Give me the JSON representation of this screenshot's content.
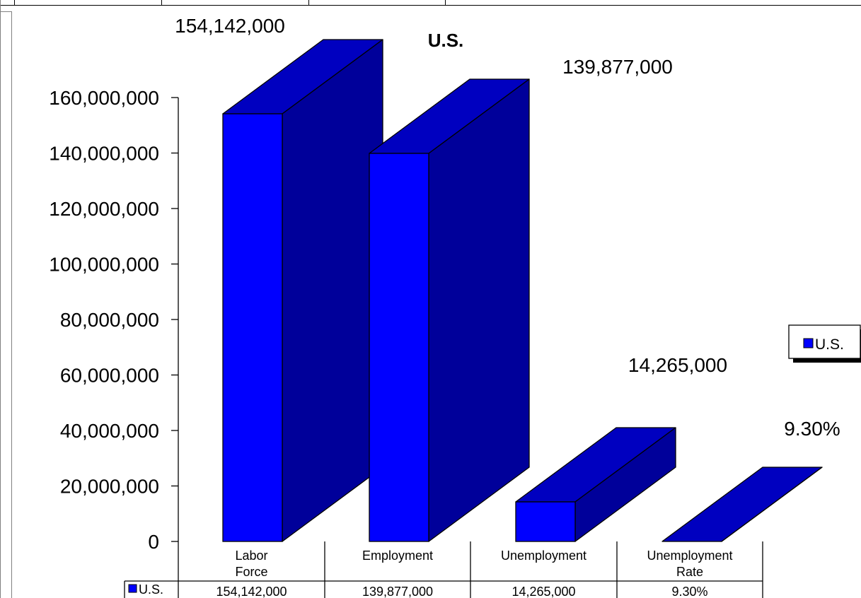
{
  "chart_data": {
    "type": "bar",
    "three_d": true,
    "title": "U.S.",
    "categories": [
      "Labor Force",
      "Employment",
      "Unemployment",
      "Unemployment Rate"
    ],
    "series": [
      {
        "name": "U.S.",
        "values": [
          154142000,
          139877000,
          14265000,
          0.093
        ],
        "data_labels": [
          "154,142,000",
          "139,877,000",
          "14,265,000",
          "9.30%"
        ],
        "color": "#0000ff",
        "side_color": "#00009a",
        "top_color": "#0000c0"
      }
    ],
    "y_ticks": [
      "160,000,000",
      "140,000,000",
      "120,000,000",
      "100,000,000",
      "80,000,000",
      "60,000,000",
      "40,000,000",
      "20,000,000",
      "0"
    ],
    "ylim": [
      0,
      160000000
    ],
    "grid": false,
    "legend": {
      "position": "right",
      "entries": [
        "U.S."
      ]
    },
    "data_table": {
      "row_label": "U.S.",
      "cells": [
        "154,142,000",
        "139,877,000",
        "14,265,000",
        "9.30%"
      ]
    }
  }
}
